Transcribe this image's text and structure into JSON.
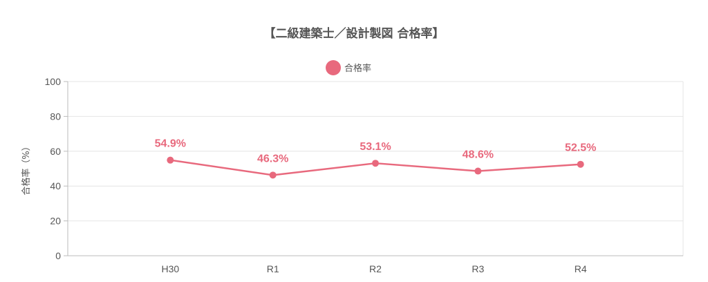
{
  "chart_data": {
    "type": "line",
    "title": "【二級建築士／設計製図 合格率】",
    "ylabel": "合格率（%）",
    "xlabel": "",
    "categories": [
      "H30",
      "R1",
      "R2",
      "R3",
      "R4"
    ],
    "series": [
      {
        "name": "合格率",
        "values": [
          54.9,
          46.3,
          53.1,
          48.6,
          52.5
        ],
        "labels": [
          "54.9%",
          "46.3%",
          "53.1%",
          "48.6%",
          "52.5%"
        ],
        "color": "#e8697d"
      }
    ],
    "ylim": [
      0,
      100
    ],
    "yticks": [
      0,
      20,
      40,
      60,
      80,
      100
    ],
    "grid": true,
    "legend": "top"
  }
}
